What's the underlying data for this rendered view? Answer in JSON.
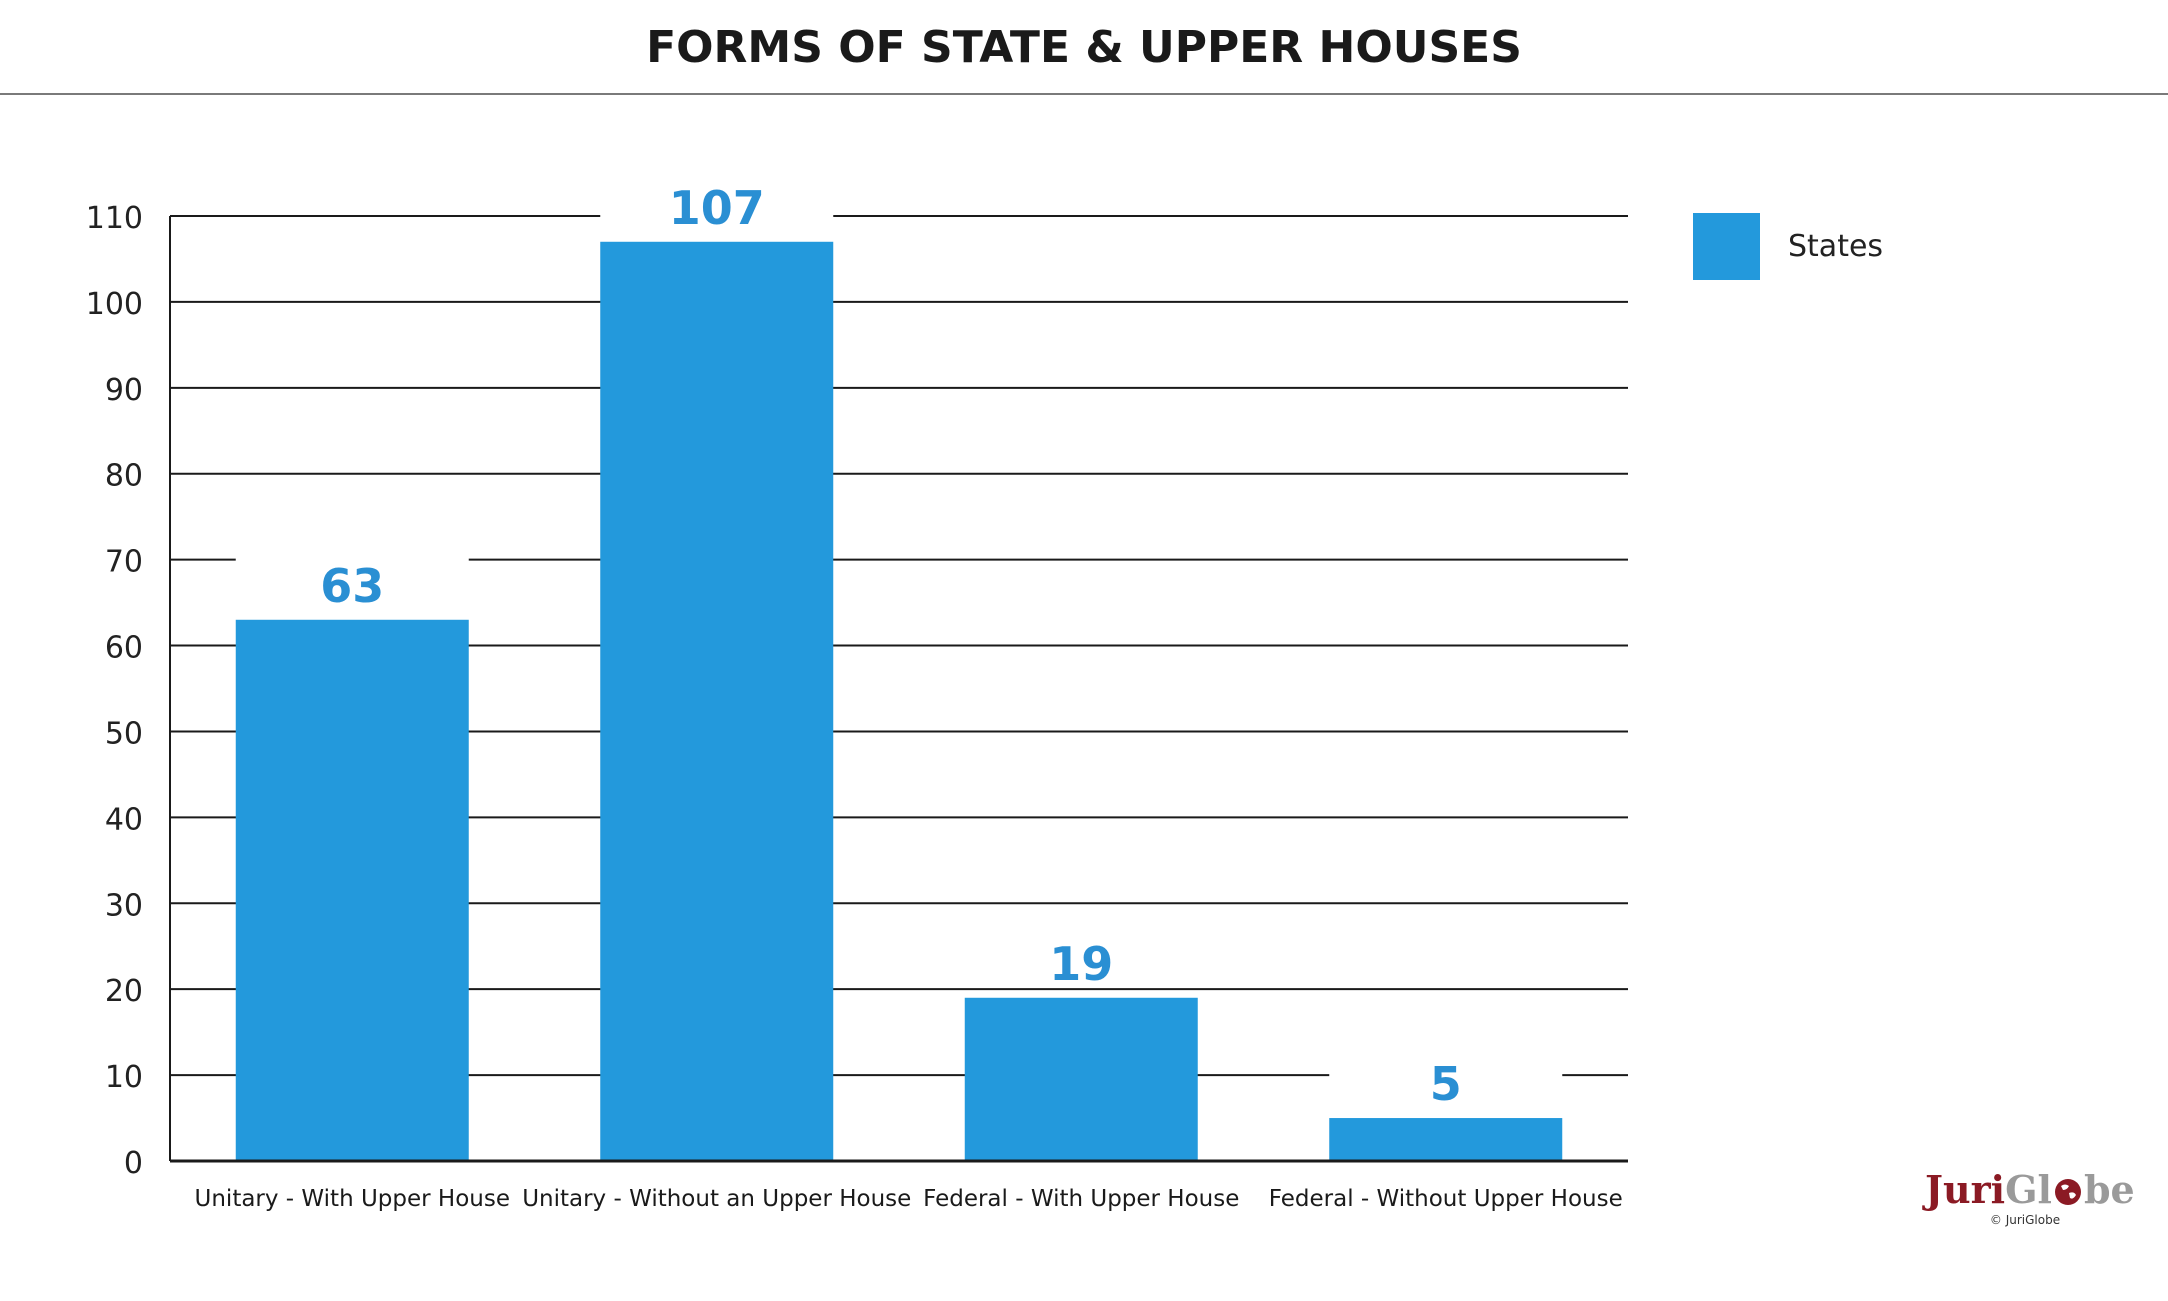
{
  "title": "FORMS OF STATE & UPPER HOUSES",
  "colors": {
    "bar": "#2399dc",
    "value_label": "#2a8fd3",
    "grid": "#1a1a1a",
    "logo_primary": "#8b1a24",
    "logo_secondary": "#9a9a9a"
  },
  "legend": {
    "label": "States"
  },
  "logo": {
    "part1": "Juri",
    "part2_a": "Gl",
    "part2_b": "be",
    "copyright": "© JuriGlobe"
  },
  "chart_data": {
    "type": "bar",
    "title": "FORMS OF STATE & UPPER HOUSES",
    "categories": [
      "Unitary - With Upper House",
      "Unitary - Without an Upper House",
      "Federal - With Upper House",
      "Federal - Without Upper House"
    ],
    "series": [
      {
        "name": "States",
        "values": [
          63,
          107,
          19,
          5
        ]
      }
    ],
    "yticks": [
      0,
      10,
      20,
      30,
      40,
      50,
      60,
      70,
      80,
      90,
      100,
      110
    ],
    "ylim": [
      0,
      110
    ],
    "xlabel": "",
    "ylabel": "",
    "grid": true,
    "legend_position": "top-right",
    "data_labels": true
  }
}
